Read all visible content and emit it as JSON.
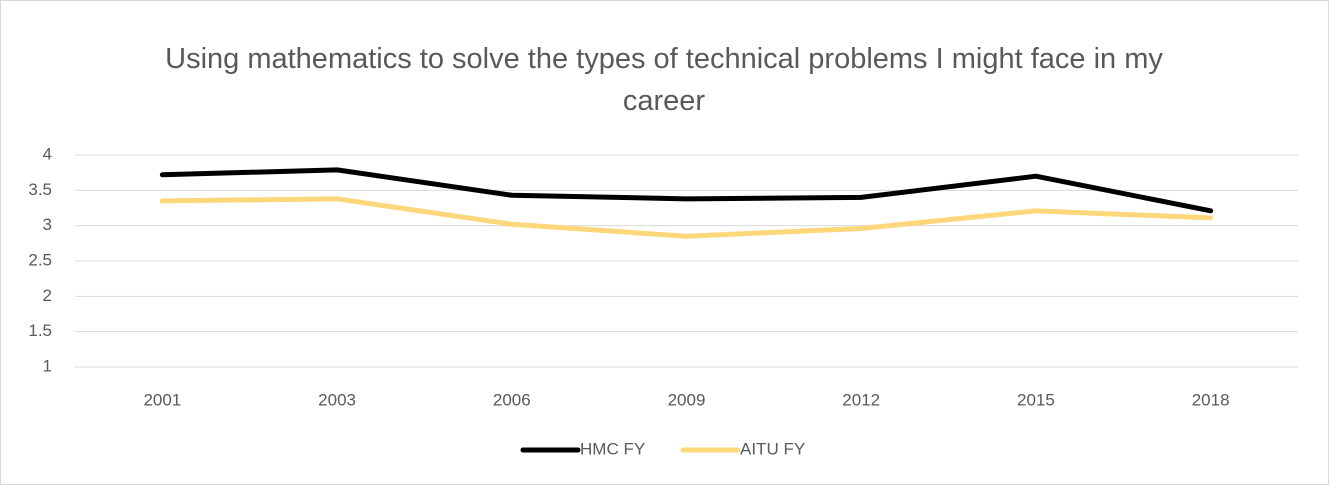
{
  "chart_data": {
    "type": "line",
    "title": "Using mathematics to solve the types of technical problems I might face in my career",
    "categories": [
      "2001",
      "2003",
      "2006",
      "2009",
      "2012",
      "2015",
      "2018"
    ],
    "series": [
      {
        "name": "HMC FY",
        "color": "#000000",
        "values": [
          3.72,
          3.79,
          3.43,
          3.38,
          3.4,
          3.7,
          3.21
        ]
      },
      {
        "name": "AITU FY",
        "color": "#fdd77a",
        "values": [
          3.35,
          3.38,
          3.02,
          2.85,
          2.96,
          3.21,
          3.11
        ]
      }
    ],
    "ylim": [
      1,
      4
    ],
    "yticks": [
      1,
      1.5,
      2,
      2.5,
      3,
      3.5,
      4
    ],
    "grid": true,
    "legend": "bottom"
  }
}
